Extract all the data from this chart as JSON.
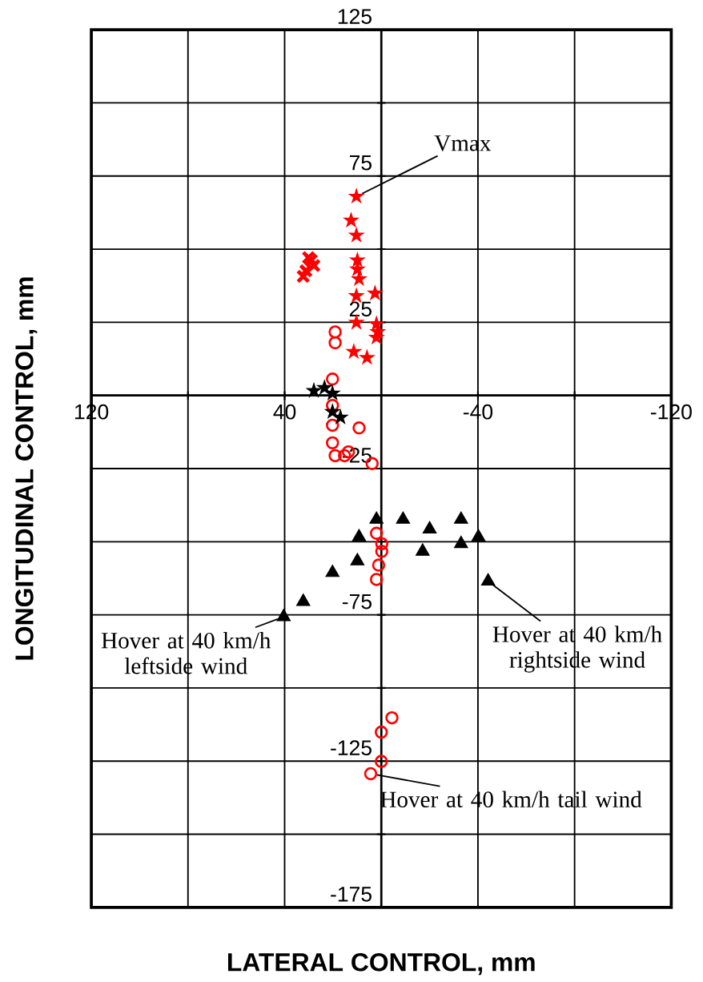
{
  "chart_data": {
    "type": "scatter",
    "xlabel": "LATERAL CONTROL, mm",
    "ylabel": "LONGITUDINAL CONTROL, mm",
    "xlim": [
      120,
      -120
    ],
    "xticks": [
      120,
      {
        "value": 80,
        "label": null
      },
      40,
      {
        "value": 0,
        "label": null
      },
      -40,
      {
        "value": -80,
        "label": null
      },
      -120
    ],
    "ylim": [
      -175,
      125
    ],
    "yticks": [
      -175,
      {
        "value": -150,
        "label": null
      },
      -125,
      {
        "value": -100,
        "label": null
      },
      -75,
      {
        "value": -50,
        "label": null
      },
      -25,
      {
        "value": 0,
        "label": null
      },
      25,
      {
        "value": 50,
        "label": null
      },
      75,
      {
        "value": 100,
        "label": null
      },
      125
    ],
    "grid": true,
    "series": [
      {
        "color": "#ff0000",
        "marker": "star",
        "x": [
          10.3,
          10.3,
          10.3,
          10.3,
          11.4,
          5.9,
          12.5,
          9.9,
          9.9,
          9.2,
          2.6,
          2.0,
          1.5,
          2.0
        ],
        "values": [
          68.0,
          54.7,
          34.0,
          24.9,
          14.9,
          12.9,
          59.8,
          46.2,
          43.1,
          39.8,
          34.9,
          24.4,
          21.7,
          19.8
        ]
      },
      {
        "color": "#ff0000",
        "marker": "cross",
        "x": [
          30.1,
          31.2,
          32.3,
          27.9,
          29.0
        ],
        "values": [
          47.1,
          42.6,
          40.7,
          44.4,
          46.2
        ]
      },
      {
        "color": "#ff0000",
        "marker": "circle",
        "x": [
          19.1,
          19.1,
          20.2,
          20.2,
          20.2,
          9.2,
          20.2,
          19.1,
          15.2,
          13.6,
          3.8,
          2.0,
          -0.2,
          -0.2,
          1.1,
          2.0,
          -4.4,
          0.0,
          0.0,
          4.4
        ],
        "values": [
          21.7,
          18.0,
          5.6,
          -3.4,
          -10.2,
          -11.1,
          -16.2,
          -20.6,
          -20.6,
          -19.3,
          -23.3,
          -47.1,
          -50.7,
          -53.3,
          -58.0,
          -62.9,
          -110.2,
          -115.1,
          -125.1,
          -129.3
        ]
      },
      {
        "color": "#000000",
        "marker": "triangle",
        "x": [
          2.0,
          -9.0,
          -33.0,
          -20.0,
          -40.2,
          -33.0,
          -17.1,
          9.2,
          9.9,
          20.2,
          32.3,
          40.4,
          -44.2
        ],
        "values": [
          -42.4,
          -42.4,
          -42.4,
          -45.7,
          -48.4,
          -50.7,
          -53.3,
          -48.4,
          -56.6,
          -60.6,
          -70.5,
          -75.7,
          -63.5
        ]
      },
      {
        "color": "#000000",
        "marker": "star",
        "x": [
          27.9,
          23.5,
          20.2,
          19.1,
          16.9,
          20.2
        ],
        "values": [
          1.6,
          2.6,
          0.7,
          null,
          -7.5,
          -5.6
        ]
      }
    ],
    "annotations": [
      {
        "text": "Vmax",
        "x": 10.3,
        "y": 68.0
      },
      {
        "text": "Hover at 40 km/h rightside wind",
        "x": -44.2,
        "y": -63.5
      },
      {
        "text": "Hover at 40 km/h leftside wind",
        "x": 40.4,
        "y": -75.7
      },
      {
        "text": "Hover at 40 km/h tail wind",
        "x": 4.4,
        "y": -129.3
      }
    ]
  }
}
